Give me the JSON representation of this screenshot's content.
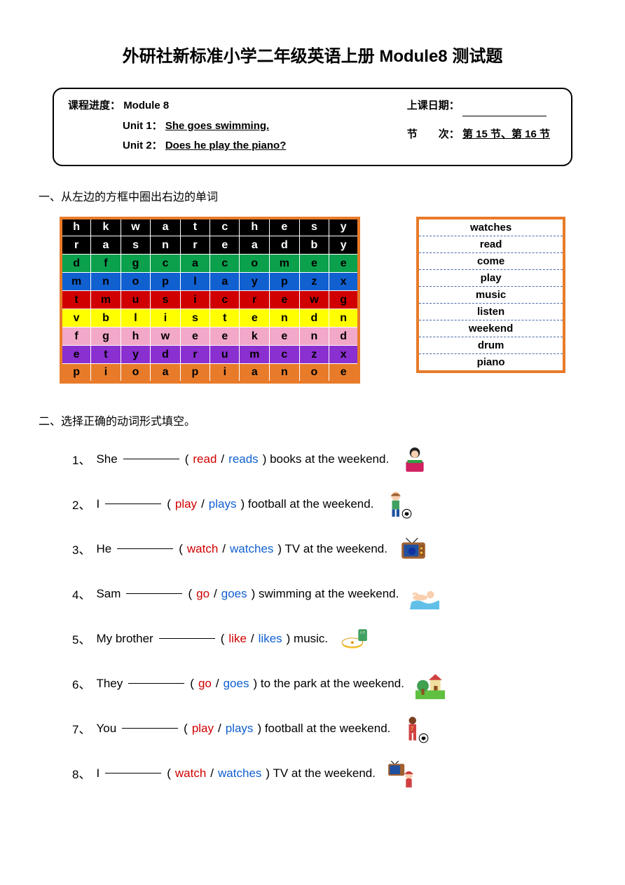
{
  "title": "外研社新标准小学二年级英语上册 Module8 测试题",
  "info": {
    "progress_label": "课程进度：",
    "module": "Module 8",
    "unit1_label": "Unit 1：",
    "unit1_text": "She goes swimming.",
    "unit2_label": "Unit 2：",
    "unit2_text": "Does he play the piano?",
    "date_label": "上课日期：",
    "session_label": "节　　次：",
    "session_text": "第 15 节、第 16 节"
  },
  "section1_title": "一、从左边的方框中圈出右边的单词",
  "grid": {
    "border_color": "#e87b2a",
    "rows": [
      {
        "bg": "#000000",
        "fg": "#ffffff",
        "cells": [
          "h",
          "k",
          "w",
          "a",
          "t",
          "c",
          "h",
          "e",
          "s",
          "y"
        ]
      },
      {
        "bg": "#000000",
        "fg": "#ffffff",
        "cells": [
          "r",
          "a",
          "s",
          "n",
          "r",
          "e",
          "a",
          "d",
          "b",
          "y"
        ]
      },
      {
        "bg": "#0aa04c",
        "fg": "#000000",
        "cells": [
          "d",
          "f",
          "g",
          "c",
          "a",
          "c",
          "o",
          "m",
          "e",
          "e"
        ]
      },
      {
        "bg": "#1060d0",
        "fg": "#000000",
        "cells": [
          "m",
          "n",
          "o",
          "p",
          "l",
          "a",
          "y",
          "p",
          "z",
          "x"
        ]
      },
      {
        "bg": "#d00000",
        "fg": "#000000",
        "cells": [
          "t",
          "m",
          "u",
          "s",
          "i",
          "c",
          "r",
          "e",
          "w",
          "g"
        ]
      },
      {
        "bg": "#ffff00",
        "fg": "#000000",
        "cells": [
          "v",
          "b",
          "l",
          "i",
          "s",
          "t",
          "e",
          "n",
          "d",
          "n"
        ]
      },
      {
        "bg": "#f2a8c8",
        "fg": "#000000",
        "cells": [
          "f",
          "g",
          "h",
          "w",
          "e",
          "e",
          "k",
          "e",
          "n",
          "d"
        ]
      },
      {
        "bg": "#8a2fd0",
        "fg": "#000000",
        "cells": [
          "e",
          "t",
          "y",
          "d",
          "r",
          "u",
          "m",
          "c",
          "z",
          "x"
        ]
      },
      {
        "bg": "#e87b2a",
        "fg": "#000000",
        "cells": [
          "p",
          "i",
          "o",
          "a",
          "p",
          "i",
          "a",
          "n",
          "o",
          "e"
        ]
      }
    ]
  },
  "wordlist": [
    "watches",
    "read",
    "come",
    "play",
    "music",
    "listen",
    "weekend",
    "drum",
    "piano"
  ],
  "section2_title": "二、选择正确的动词形式填空。",
  "questions": [
    {
      "num": "1、",
      "pre": "She ",
      "a": "read",
      "b": "reads",
      "post": ") books at the weekend.",
      "icon": "girl-reading"
    },
    {
      "num": "2、",
      "pre": "I ",
      "a": "play",
      "b": "plays",
      "post": ") football at the weekend.",
      "icon": "boy-football"
    },
    {
      "num": "3、",
      "pre": "He ",
      "a": "watch",
      "b": "watches",
      "post": ") TV at the weekend.",
      "icon": "tv"
    },
    {
      "num": "4、",
      "pre": "Sam ",
      "a": "go",
      "b": "goes",
      "post": ") swimming at the weekend.",
      "icon": "swimming"
    },
    {
      "num": "5、",
      "pre": " My brother ",
      "a": "like",
      "b": "likes",
      "post": ") music.",
      "icon": "cd-music"
    },
    {
      "num": "6、",
      "pre": " They ",
      "a": "go",
      "b": "goes",
      "post": ") to the park at the weekend.",
      "icon": "park"
    },
    {
      "num": "7、",
      "pre": " You ",
      "a": "play",
      "b": "plays",
      "post": ") football at the weekend.",
      "icon": "girl-football"
    },
    {
      "num": "8、",
      "pre": " I ",
      "a": "watch",
      "b": "watches",
      "post": ") TV at the weekend.",
      "icon": "girl-tv"
    }
  ],
  "icons_svg": {
    "girl-reading": "<svg viewBox='0 0 40 40'><circle cx='20' cy='10' r='7' fill='#222'/><circle cx='20' cy='12' r='5' fill='#f8d0b0'/><rect x='8' y='22' width='24' height='14' rx='2' fill='#d02060'/><rect x='10' y='20' width='20' height='4' fill='#30a040'/></svg>",
    "boy-football": "<svg viewBox='0 0 40 40'><circle cx='15' cy='8' r='6' fill='#f8d0b0'/><path d='M8 8 Q15 0 22 8' fill='#a06030'/><rect x='10' y='14' width='10' height='12' fill='#40a060'/><rect x='10' y='26' width='4' height='10' fill='#2050a0'/><rect x='16' y='26' width='4' height='10' fill='#2050a0'/><circle cx='30' cy='32' r='6' fill='#fff' stroke='#000'/><path d='M28 30 L32 30 L33 33 L30 35 L27 33 Z' fill='#000'/></svg>",
    "tv": "<svg viewBox='0 0 40 40'><rect x='4' y='10' width='32' height='22' rx='3' fill='#a06030'/><rect x='7' y='13' width='20' height='16' fill='#2050a0'/><circle cx='18' cy='22' r='5' fill='#1030a0'/><rect x='29' y='14' width='5' height='14' fill='#8b5020'/><circle cx='31' cy='18' r='1.5' fill='#ffcc40'/><circle cx='31' cy='24' r='1.5' fill='#ffcc40'/><line x1='10' y1='4' x2='16' y2='10' stroke='#000'/><line x1='26' y1='4' x2='20' y2='10' stroke='#000'/></svg>",
    "swimming": "<svg viewBox='0 0 40 40'><path d='M2 30 Q10 26 18 30 T34 30 T40 30 L40 40 L0 40 Z' fill='#60c0e8'/><circle cx='28' cy='20' r='5' fill='#f8d0b0'/><ellipse cx='14' cy='24' rx='10' ry='4' fill='#f8d0b0'/><path d='M4 20 Q8 16 12 22' stroke='#f8d0b0' stroke-width='3' fill='none'/></svg>",
    "cd-music": "<svg viewBox='0 0 40 40'><ellipse cx='18' cy='26' rx='14' ry='6' fill='#ffd040'/><ellipse cx='18' cy='24' rx='14' ry='6' fill='#fff' stroke='#e0a020'/><circle cx='18' cy='24' r='2' fill='#e0a020'/><rect x='26' y='6' width='12' height='16' rx='2' fill='#40a060'/><text x='28' y='12' font-size='6' fill='#fff'>♪♫</text></svg>",
    "park": "<svg viewBox='0 0 40 40'><rect x='0' y='28' width='40' height='12' fill='#60c040'/><circle cx='10' cy='22' r='8' fill='#40a050'/><rect x='8' y='26' width='4' height='8' fill='#8b5020'/><rect x='20' y='14' width='14' height='14' fill='#f0e0a0'/><polygon points='18,14 36,14 27,6' fill='#d04040'/><rect x='25' y='22' width='5' height='6' fill='#8b5020'/></svg>",
    "girl-football": "<svg viewBox='0 0 40 40'><circle cx='15' cy='8' r='5' fill='#7a4020'/><rect x='10' y='13' width='10' height='12' fill='#d04040'/><text x='12' y='22' font-size='8' fill='#ffcc40'>7</text><rect x='10' y='25' width='4' height='10' fill='#d04040'/><rect x='16' y='25' width='4' height='10' fill='#d04040'/><circle cx='30' cy='32' r='6' fill='#fff' stroke='#000'/><path d='M28 30 L32 30 L33 33 L30 35 L27 33 Z' fill='#000'/></svg>",
    "girl-tv": "<svg viewBox='0 0 40 40'><rect x='2' y='6' width='22' height='16' rx='2' fill='#a06030'/><rect x='4' y='8' width='14' height='12' fill='#2050a0'/><line x1='6' y1='2' x2='10' y2='6' stroke='#000'/><line x1='16' y1='2' x2='12' y2='6' stroke='#000'/><circle cx='30' cy='22' r='5' fill='#f8d0b0'/><path d='M24 20 Q30 12 36 20' fill='#d04040'/><path d='M26 27 Q30 24 34 27 L34 38 L26 38 Z' fill='#d04040'/></svg>"
  }
}
